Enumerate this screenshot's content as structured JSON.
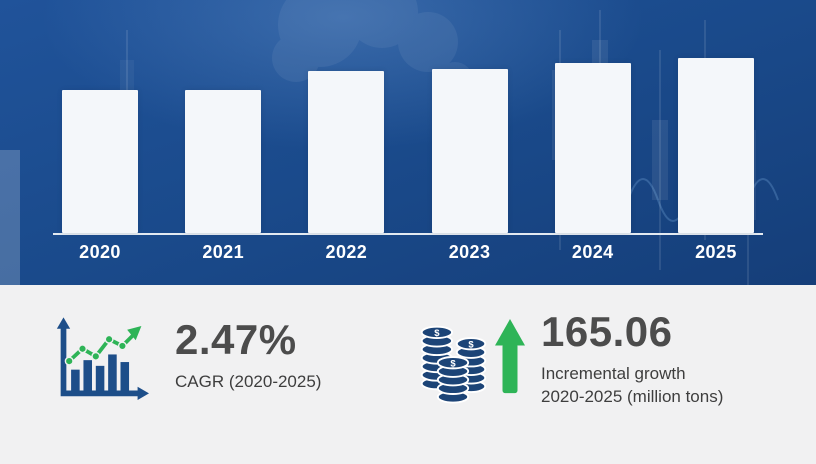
{
  "chart_data": {
    "type": "bar",
    "title": "",
    "xlabel": "",
    "ylabel": "",
    "categories": [
      "2020",
      "2021",
      "2022",
      "2023",
      "2024",
      "2025"
    ],
    "values": [
      82,
      81.5,
      92.5,
      93.5,
      97,
      100
    ],
    "value_scale": "relative bar height, 2025 = 100 (no numeric axis shown)",
    "ylim": [
      0,
      100
    ],
    "grid": false,
    "legend": "none",
    "bar_color": "#f4f7fa",
    "baseline_color": "#e3eaf1",
    "background_color": "#1a4a8b"
  },
  "stats": {
    "cagr_value": "2.47%",
    "cagr_label": "CAGR (2020-2025)",
    "growth_value": "165.06",
    "growth_label_line1": "Incremental growth",
    "growth_label_line2": "2020-2025 (million tons)"
  },
  "colors": {
    "accent_green": "#2eb457",
    "icon_blue": "#1d4e89",
    "stat_text": "#4c4c4c",
    "bottom_background": "#f1f1f2",
    "year_label": "#ffffff"
  },
  "icons": {
    "left_stat_icon": "growth-chart-icon",
    "right_stat_icon": "coins-icon",
    "right_stat_arrow": "up-arrow-icon"
  }
}
